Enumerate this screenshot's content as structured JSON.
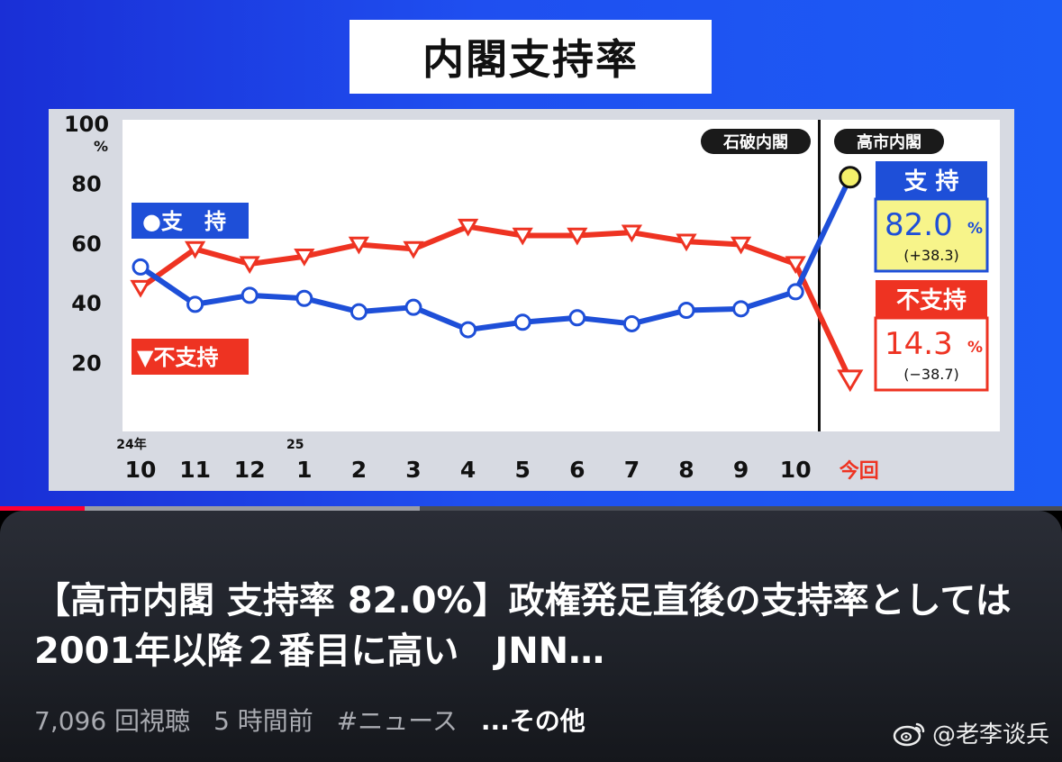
{
  "video": {
    "chart_title": "内閣支持率",
    "chart_data": {
      "type": "line",
      "categories": [
        "10",
        "11",
        "12",
        "1",
        "2",
        "3",
        "4",
        "5",
        "6",
        "7",
        "8",
        "9",
        "10",
        "今回"
      ],
      "year_markers": [
        {
          "index": 0,
          "label": "24年"
        },
        {
          "index": 3,
          "label": "25"
        }
      ],
      "ylim": [
        0,
        100
      ],
      "y_ticks": [
        20,
        40,
        60,
        80,
        100
      ],
      "y_unit": "%",
      "series": [
        {
          "name": "支　持",
          "legend_label": "●支　持",
          "color": "#1e4fd8",
          "values": [
            52.0,
            39.5,
            42.5,
            41.5,
            37.0,
            38.5,
            31.0,
            33.5,
            35.0,
            33.0,
            37.5,
            38.0,
            43.7,
            82.0
          ]
        },
        {
          "name": "不支持",
          "legend_label": "▼不支持",
          "color": "#ee3322",
          "values": [
            45.0,
            58.0,
            53.0,
            55.5,
            59.5,
            58.0,
            65.5,
            62.5,
            62.5,
            63.5,
            60.5,
            59.5,
            53.0,
            14.3
          ]
        }
      ],
      "era_labels": {
        "before": "石破内閣",
        "after": "高市内閣"
      },
      "divider_after_index": 12,
      "highlight_label": "今回",
      "results": {
        "support": {
          "title": "支 持",
          "value": "82.0",
          "unit": "%",
          "change": "(+38.3)"
        },
        "nonsupport": {
          "title": "不支持",
          "value": "14.3",
          "unit": "%",
          "change": "(−38.7)"
        }
      }
    }
  },
  "player": {
    "progress": 0.08,
    "buffered": 0.395
  },
  "info": {
    "title": "【高市内閣 支持率 82.0%】政権発足直後の支持率としては2001年以降２番目に高い　JNN…",
    "views": "7,096 回視聴",
    "time_ago": "5 時間前",
    "hashtag": "#ニュース",
    "more": "...その他"
  },
  "watermark": {
    "icon": "weibo-icon",
    "text": "@老李谈兵"
  }
}
